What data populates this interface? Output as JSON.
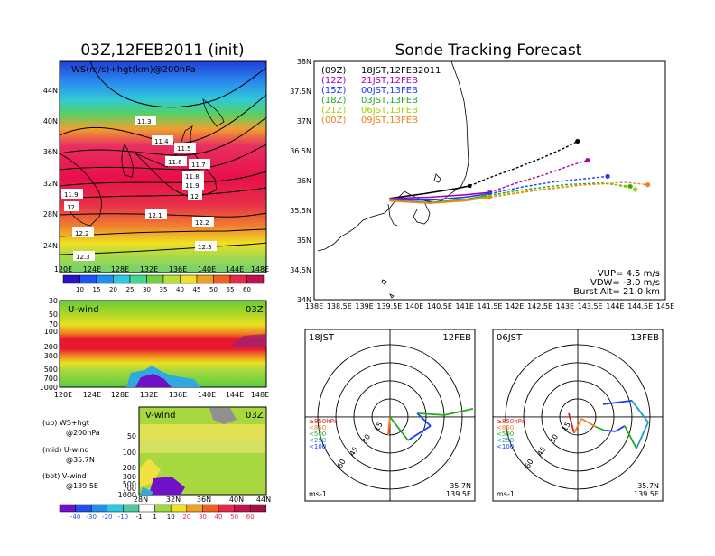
{
  "left": {
    "main_title": "03Z,12FEB2011 (init)",
    "ws_map": {
      "label": "WS(m/s)+hgt(km)@200hPa",
      "lat_labels": [
        "44N",
        "40N",
        "36N",
        "32N",
        "28N",
        "24N"
      ],
      "lon_labels": [
        "120E",
        "124E",
        "128E",
        "132E",
        "136E",
        "140E",
        "144E",
        "148E"
      ],
      "contour_labels": [
        "11.3",
        "11.4",
        "11.5",
        "11.6",
        "11.7",
        "11.8",
        "11.9",
        "12",
        "11.9",
        "12",
        "12.1",
        "12.2",
        "12.2",
        "12.3",
        "12.3"
      ],
      "colorbar": [
        "10",
        "15",
        "20",
        "25",
        "30",
        "35",
        "40",
        "45",
        "50",
        "55",
        "60"
      ]
    },
    "u_panel": {
      "label": "U-wind",
      "time": "03Z",
      "levels": [
        "30",
        "50",
        "70",
        "100",
        "200",
        "300",
        "500",
        "700",
        "1000"
      ],
      "lon_labels": [
        "120E",
        "124E",
        "128E",
        "132E",
        "136E",
        "140E",
        "144E",
        "148E"
      ]
    },
    "v_panel": {
      "label": "V-wind",
      "time": "03Z",
      "levels": [
        "50",
        "100",
        "200",
        "300",
        "500",
        "700",
        "1000"
      ],
      "lat_labels": [
        "28N",
        "32N",
        "36N",
        "40N",
        "44N"
      ]
    },
    "legend_text": [
      {
        "a": "(up) WS+hgt",
        "b": "@200hPa"
      },
      {
        "a": "(mid) U-wind",
        "b": "@35.7N"
      },
      {
        "a": "(bot) V-wind",
        "b": "@139.5E"
      }
    ],
    "bottom_colorbar": [
      "-40",
      "-30",
      "-20",
      "-10",
      "-1",
      "1",
      "10",
      "20",
      "30",
      "40",
      "50",
      "60"
    ]
  },
  "tracking": {
    "title": "Sonde Tracking Forecast",
    "y_ticks": [
      "38N",
      "37.5N",
      "37N",
      "36.5N",
      "36N",
      "35.5N",
      "35N",
      "34.5N",
      "34N"
    ],
    "x_ticks": [
      "138E",
      "138.5E",
      "139E",
      "139.5E",
      "140E",
      "140.5E",
      "141E",
      "141.5E",
      "142E",
      "142.5E",
      "143E",
      "143.5E",
      "144E",
      "144.5E",
      "145E"
    ],
    "legend": [
      {
        "code": "(09Z)",
        "text": "18JST,12FEB2011",
        "color": "#000000"
      },
      {
        "code": "(12Z)",
        "text": "21JST,12FEB",
        "color": "#b000b0"
      },
      {
        "code": "(15Z)",
        "text": "00JST,13FEB",
        "color": "#1a3cff"
      },
      {
        "code": "(18Z)",
        "text": "03JST,13FEB",
        "color": "#22aa22"
      },
      {
        "code": "(21Z)",
        "text": "06JST,13FEB",
        "color": "#a8d000"
      },
      {
        "code": "(00Z)",
        "text": "09JST,13FEB",
        "color": "#f08020"
      }
    ],
    "info": [
      "VUP= 4.5 m/s",
      "VDW= -3.0 m/s",
      "Burst Alt= 21.0 km"
    ]
  },
  "hodographs": [
    {
      "time": "18JST",
      "date": "12FEB",
      "lat": "35.7N",
      "lon": "139.5E",
      "unit": "ms-1",
      "rings": [
        "15",
        "30",
        "45",
        "60"
      ],
      "levels": [
        "≥850hPa",
        "<850",
        "<500",
        "<250",
        "<100"
      ]
    },
    {
      "time": "06JST",
      "date": "13FEB",
      "lat": "35.7N",
      "lon": "139.5E",
      "unit": "ms-1",
      "rings": [
        "15",
        "30",
        "45",
        "60"
      ],
      "levels": [
        "≥850hPa",
        "<850",
        "<500",
        "<250",
        "<100"
      ]
    }
  ],
  "colors": {
    "track_black": "#000000",
    "track_purple": "#b000b0",
    "track_blue": "#1a3cff",
    "track_green": "#22aa22",
    "track_lime": "#a8d000",
    "track_orange": "#f08020",
    "jet_max": "#e8103a",
    "land_line": "#000000"
  },
  "chart_data": [
    {
      "type": "line",
      "title": "Sonde Tracking Forecast",
      "x_axis": "longitude",
      "y_axis": "latitude",
      "xlim": [
        138,
        145
      ],
      "ylim": [
        34,
        38
      ],
      "launch": [
        139.5,
        35.7
      ],
      "series": [
        {
          "name": "18JST,12FEB2011",
          "points": [
            [
              139.5,
              35.7
            ],
            [
              140.2,
              35.78
            ],
            [
              140.8,
              35.86
            ],
            [
              141.1,
              35.91
            ],
            [
              141.5,
              36.05
            ],
            [
              142.0,
              36.2
            ],
            [
              142.6,
              36.4
            ],
            [
              143.0,
              36.55
            ],
            [
              143.25,
              36.66
            ]
          ]
        },
        {
          "name": "21JST,12FEB",
          "points": [
            [
              139.5,
              35.7
            ],
            [
              140.3,
              35.72
            ],
            [
              141.0,
              35.76
            ],
            [
              141.5,
              35.8
            ],
            [
              142.0,
              35.95
            ],
            [
              142.6,
              36.1
            ],
            [
              143.1,
              36.25
            ],
            [
              143.45,
              36.34
            ]
          ]
        },
        {
          "name": "00JST,13FEB",
          "points": [
            [
              139.5,
              35.68
            ],
            [
              140.3,
              35.67
            ],
            [
              141.0,
              35.72
            ],
            [
              141.5,
              35.78
            ],
            [
              142.2,
              35.9
            ],
            [
              142.8,
              35.98
            ],
            [
              143.4,
              36.03
            ],
            [
              143.85,
              36.07
            ]
          ]
        },
        {
          "name": "03JST,13FEB",
          "points": [
            [
              139.5,
              35.67
            ],
            [
              140.3,
              35.63
            ],
            [
              141.0,
              35.68
            ],
            [
              141.4,
              35.74
            ],
            [
              142.2,
              35.85
            ],
            [
              143.0,
              35.93
            ],
            [
              143.7,
              35.96
            ],
            [
              144.3,
              35.9
            ]
          ]
        },
        {
          "name": "06JST,13FEB",
          "points": [
            [
              139.5,
              35.66
            ],
            [
              140.3,
              35.62
            ],
            [
              141.0,
              35.67
            ],
            [
              141.5,
              35.73
            ],
            [
              142.3,
              35.83
            ],
            [
              143.2,
              35.92
            ],
            [
              143.9,
              35.95
            ],
            [
              144.4,
              35.85
            ]
          ]
        },
        {
          "name": "09JST,13FEB",
          "points": [
            [
              139.5,
              35.66
            ],
            [
              140.3,
              35.62
            ],
            [
              141.0,
              35.66
            ],
            [
              141.5,
              35.72
            ],
            [
              142.4,
              35.83
            ],
            [
              143.4,
              35.93
            ],
            [
              144.2,
              35.97
            ],
            [
              144.65,
              35.93
            ]
          ]
        }
      ]
    }
  ]
}
